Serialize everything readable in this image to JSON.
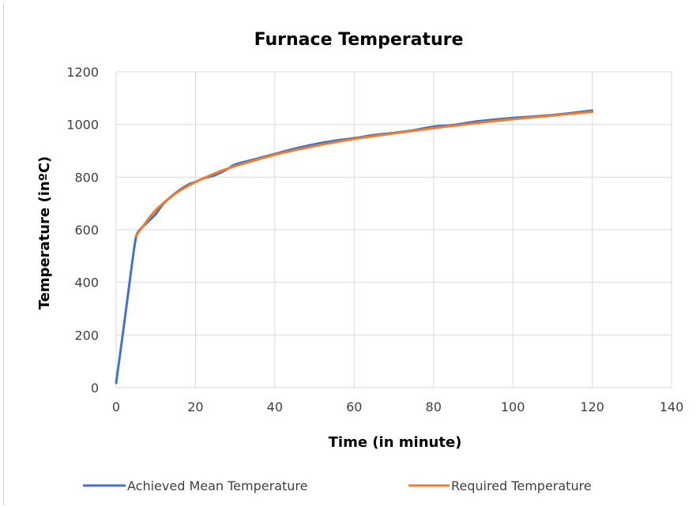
{
  "chart_data": {
    "type": "line",
    "title": "Furnace Temperature",
    "xlabel": "Time (in minute)",
    "ylabel": "Temperature (inºC)",
    "xlim": [
      0,
      140
    ],
    "ylim": [
      0,
      1200
    ],
    "x_ticks": [
      0,
      20,
      40,
      60,
      80,
      100,
      120,
      140
    ],
    "y_ticks": [
      0,
      200,
      400,
      600,
      800,
      1000,
      1200
    ],
    "grid": true,
    "legend_position": "bottom",
    "series": [
      {
        "name": "Achieved Mean Temperature",
        "color": "#4472c4",
        "x": [
          0,
          2,
          4,
          5,
          6,
          8,
          10,
          12,
          15,
          18,
          20,
          22,
          25,
          28,
          30,
          35,
          40,
          45,
          50,
          55,
          60,
          65,
          70,
          75,
          80,
          85,
          90,
          95,
          100,
          105,
          110,
          115,
          120
        ],
        "y": [
          18,
          240,
          470,
          570,
          600,
          630,
          660,
          700,
          740,
          770,
          782,
          795,
          808,
          830,
          848,
          868,
          888,
          908,
          925,
          938,
          948,
          960,
          968,
          978,
          992,
          998,
          1010,
          1018,
          1025,
          1030,
          1036,
          1044,
          1053
        ]
      },
      {
        "name": "Required Temperature",
        "color": "#ed7d31",
        "x": [
          5,
          7,
          10,
          15,
          20,
          25,
          30,
          35,
          40,
          45,
          50,
          55,
          60,
          65,
          70,
          75,
          80,
          85,
          90,
          95,
          100,
          105,
          110,
          115,
          120
        ],
        "y": [
          576,
          618,
          675,
          738,
          781,
          815,
          842,
          864,
          885,
          902,
          918,
          932,
          945,
          956,
          966,
          976,
          986,
          995,
          1004,
          1012,
          1020,
          1027,
          1034,
          1041,
          1048
        ]
      }
    ]
  }
}
